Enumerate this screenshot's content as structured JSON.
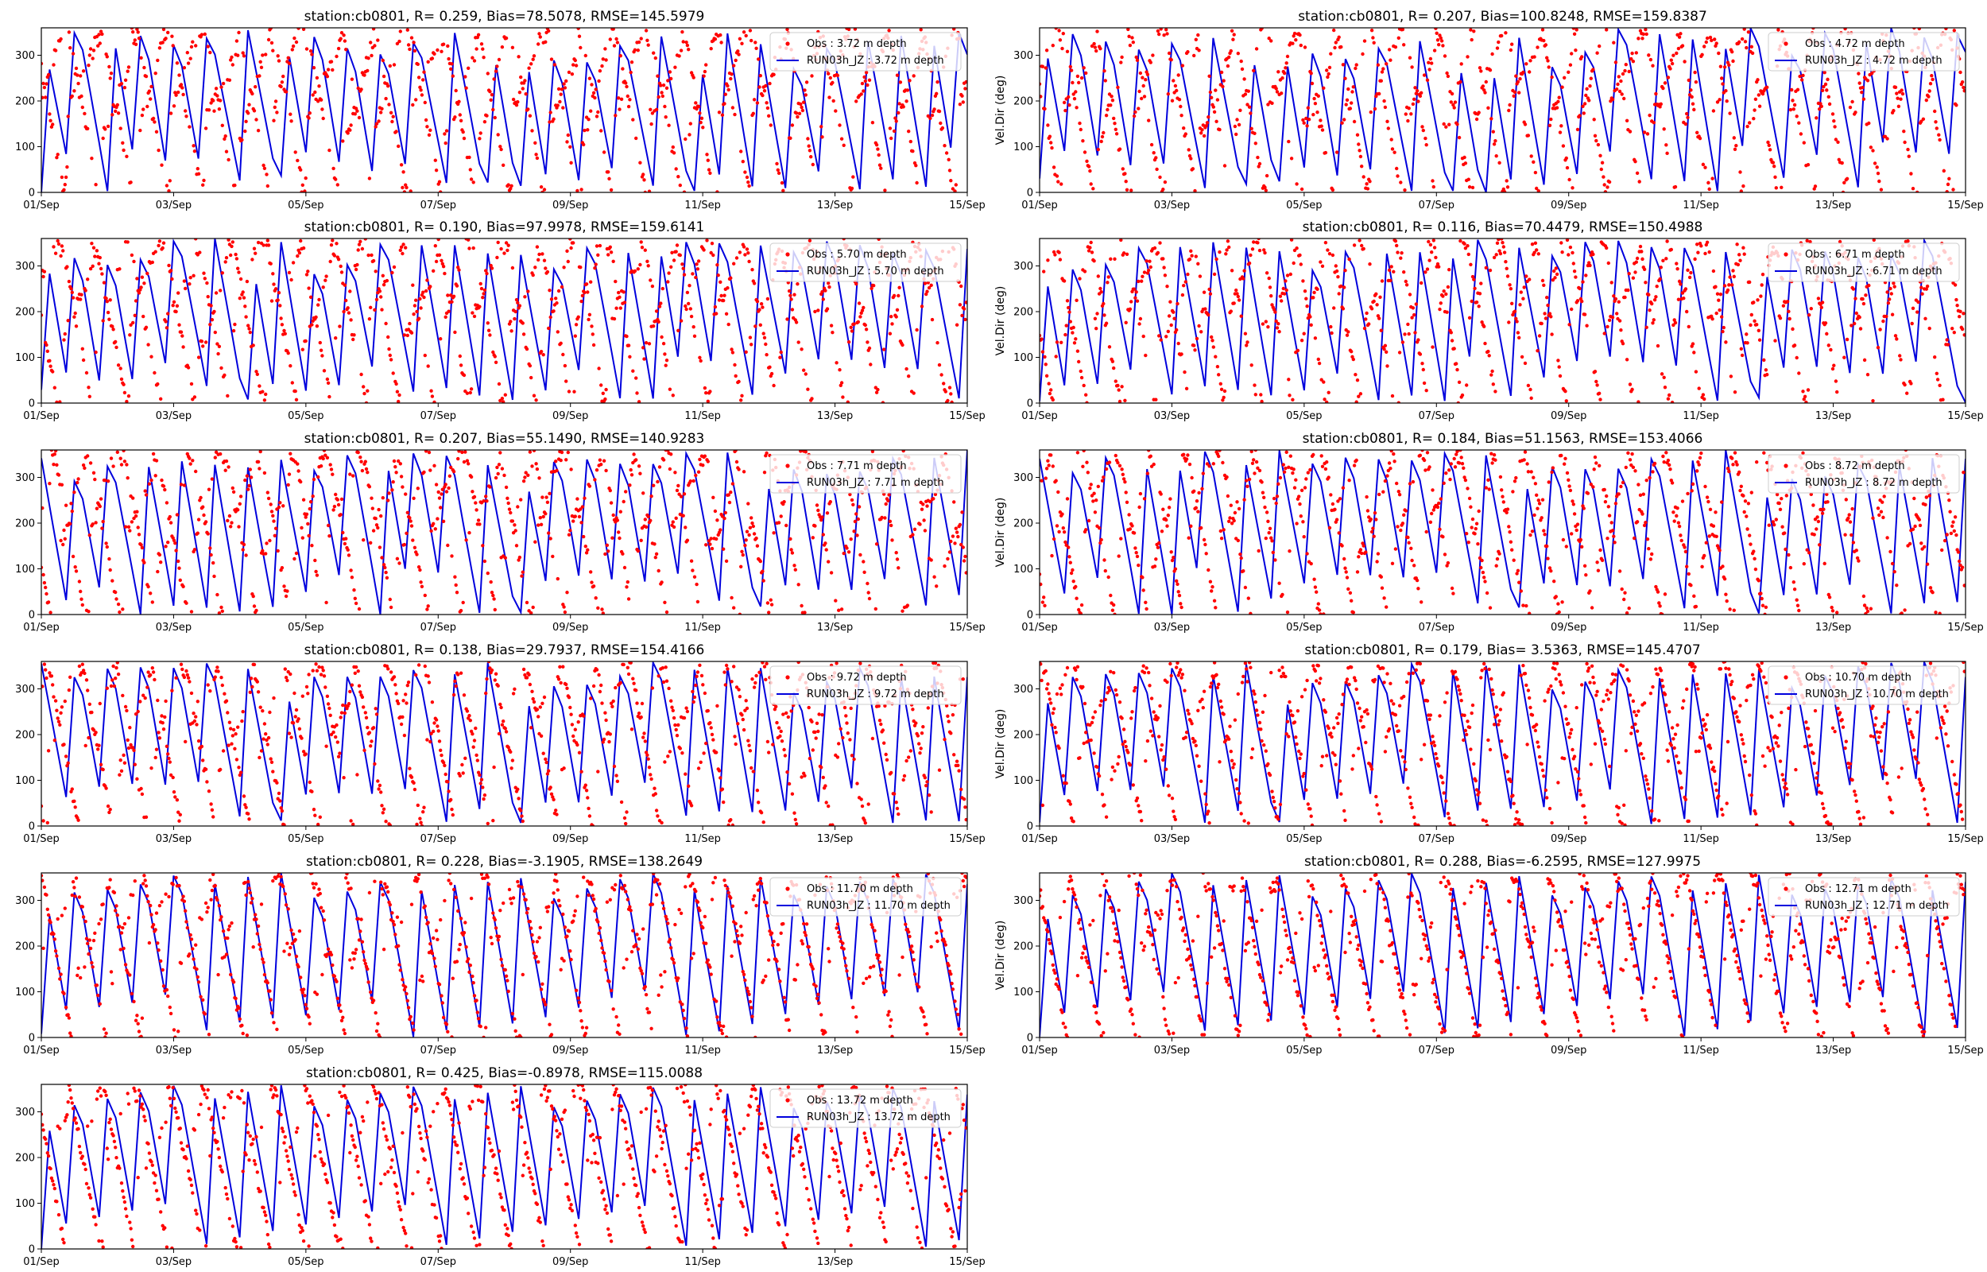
{
  "colors": {
    "obs": "#ff0000",
    "model": "#0000dd",
    "axis": "#000000",
    "background": "#ffffff"
  },
  "x_tick_labels": [
    "01/Sep",
    "03/Sep",
    "05/Sep",
    "07/Sep",
    "09/Sep",
    "11/Sep",
    "13/Sep",
    "15/Sep"
  ],
  "y_tick_labels": [
    "0",
    "100",
    "200",
    "300"
  ],
  "chart_data": [
    {
      "type": "scatter",
      "panel": 1,
      "title": "station:cb0801, R= 0.259, Bias=78.5078, RMSE=145.5979",
      "ylabel": "",
      "xlim": [
        "01/Sep",
        "15/Sep"
      ],
      "ylim": [
        0,
        360
      ],
      "legend": "top-right",
      "grid": false,
      "series": [
        {
          "name": "Obs : 3.72 m depth",
          "style": "red dots"
        },
        {
          "name": "RUN03h_JZ : 3.72 m depth",
          "style": "blue line"
        }
      ]
    },
    {
      "type": "scatter",
      "panel": 2,
      "title": "station:cb0801, R= 0.207, Bias=100.8248, RMSE=159.8387",
      "ylabel": "Vel.Dir (deg)",
      "xlim": [
        "01/Sep",
        "15/Sep"
      ],
      "ylim": [
        0,
        360
      ],
      "legend": "top-right",
      "grid": false,
      "series": [
        {
          "name": "Obs : 4.72 m depth",
          "style": "red dots"
        },
        {
          "name": "RUN03h_JZ : 4.72 m depth",
          "style": "blue line"
        }
      ]
    },
    {
      "type": "scatter",
      "panel": 3,
      "title": "station:cb0801, R= 0.190, Bias=97.9978, RMSE=159.6141",
      "ylabel": "",
      "xlim": [
        "01/Sep",
        "15/Sep"
      ],
      "ylim": [
        0,
        360
      ],
      "legend": "top-right",
      "grid": false,
      "series": [
        {
          "name": "Obs : 5.70 m depth",
          "style": "red dots"
        },
        {
          "name": "RUN03h_JZ : 5.70 m depth",
          "style": "blue line"
        }
      ]
    },
    {
      "type": "scatter",
      "panel": 4,
      "title": "station:cb0801, R= 0.116, Bias=70.4479, RMSE=150.4988",
      "ylabel": "Vel.Dir (deg)",
      "xlim": [
        "01/Sep",
        "15/Sep"
      ],
      "ylim": [
        0,
        360
      ],
      "legend": "top-right",
      "grid": false,
      "series": [
        {
          "name": "Obs : 6.71 m depth",
          "style": "red dots"
        },
        {
          "name": "RUN03h_JZ : 6.71 m depth",
          "style": "blue line"
        }
      ]
    },
    {
      "type": "scatter",
      "panel": 5,
      "title": "station:cb0801, R= 0.207, Bias=55.1490, RMSE=140.9283",
      "ylabel": "",
      "xlim": [
        "01/Sep",
        "15/Sep"
      ],
      "ylim": [
        0,
        360
      ],
      "legend": "top-right",
      "grid": false,
      "series": [
        {
          "name": "Obs : 7.71 m depth",
          "style": "red dots"
        },
        {
          "name": "RUN03h_JZ : 7.71 m depth",
          "style": "blue line"
        }
      ]
    },
    {
      "type": "scatter",
      "panel": 6,
      "title": "station:cb0801, R= 0.184, Bias=51.1563, RMSE=153.4066",
      "ylabel": "Vel.Dir (deg)",
      "xlim": [
        "01/Sep",
        "15/Sep"
      ],
      "ylim": [
        0,
        360
      ],
      "legend": "top-right",
      "grid": false,
      "series": [
        {
          "name": "Obs : 8.72 m depth",
          "style": "red dots"
        },
        {
          "name": "RUN03h_JZ : 8.72 m depth",
          "style": "blue line"
        }
      ]
    },
    {
      "type": "scatter",
      "panel": 7,
      "title": "station:cb0801, R= 0.138, Bias=29.7937, RMSE=154.4166",
      "ylabel": "",
      "xlim": [
        "01/Sep",
        "15/Sep"
      ],
      "ylim": [
        0,
        360
      ],
      "legend": "top-right",
      "grid": false,
      "series": [
        {
          "name": "Obs : 9.72 m depth",
          "style": "red dots"
        },
        {
          "name": "RUN03h_JZ : 9.72 m depth",
          "style": "blue line"
        }
      ]
    },
    {
      "type": "scatter",
      "panel": 8,
      "title": "station:cb0801, R= 0.179, Bias= 3.5363, RMSE=145.4707",
      "ylabel": "Vel.Dir (deg)",
      "xlim": [
        "01/Sep",
        "15/Sep"
      ],
      "ylim": [
        0,
        360
      ],
      "legend": "top-right",
      "grid": false,
      "series": [
        {
          "name": "Obs : 10.70 m depth",
          "style": "red dots"
        },
        {
          "name": "RUN03h_JZ : 10.70 m depth",
          "style": "blue line"
        }
      ]
    },
    {
      "type": "scatter",
      "panel": 9,
      "title": "station:cb0801, R= 0.228, Bias=-3.1905, RMSE=138.2649",
      "ylabel": "",
      "xlim": [
        "01/Sep",
        "15/Sep"
      ],
      "ylim": [
        0,
        360
      ],
      "legend": "top-right",
      "grid": false,
      "series": [
        {
          "name": "Obs : 11.70 m depth",
          "style": "red dots"
        },
        {
          "name": "RUN03h_JZ : 11.70 m depth",
          "style": "blue line"
        }
      ]
    },
    {
      "type": "scatter",
      "panel": 10,
      "title": "station:cb0801, R= 0.288, Bias=-6.2595, RMSE=127.9975",
      "ylabel": "Vel.Dir (deg)",
      "xlim": [
        "01/Sep",
        "15/Sep"
      ],
      "ylim": [
        0,
        360
      ],
      "legend": "top-right",
      "grid": false,
      "series": [
        {
          "name": "Obs : 12.71 m depth",
          "style": "red dots"
        },
        {
          "name": "RUN03h_JZ : 12.71 m depth",
          "style": "blue line"
        }
      ]
    },
    {
      "type": "scatter",
      "panel": 11,
      "title": "station:cb0801, R= 0.425, Bias=-0.8978, RMSE=115.0088",
      "ylabel": "",
      "xlim": [
        "01/Sep",
        "15/Sep"
      ],
      "ylim": [
        0,
        360
      ],
      "legend": "top-right",
      "grid": false,
      "series": [
        {
          "name": "Obs : 13.72 m depth",
          "style": "red dots"
        },
        {
          "name": "RUN03h_JZ : 13.72 m depth",
          "style": "blue line"
        }
      ]
    }
  ]
}
